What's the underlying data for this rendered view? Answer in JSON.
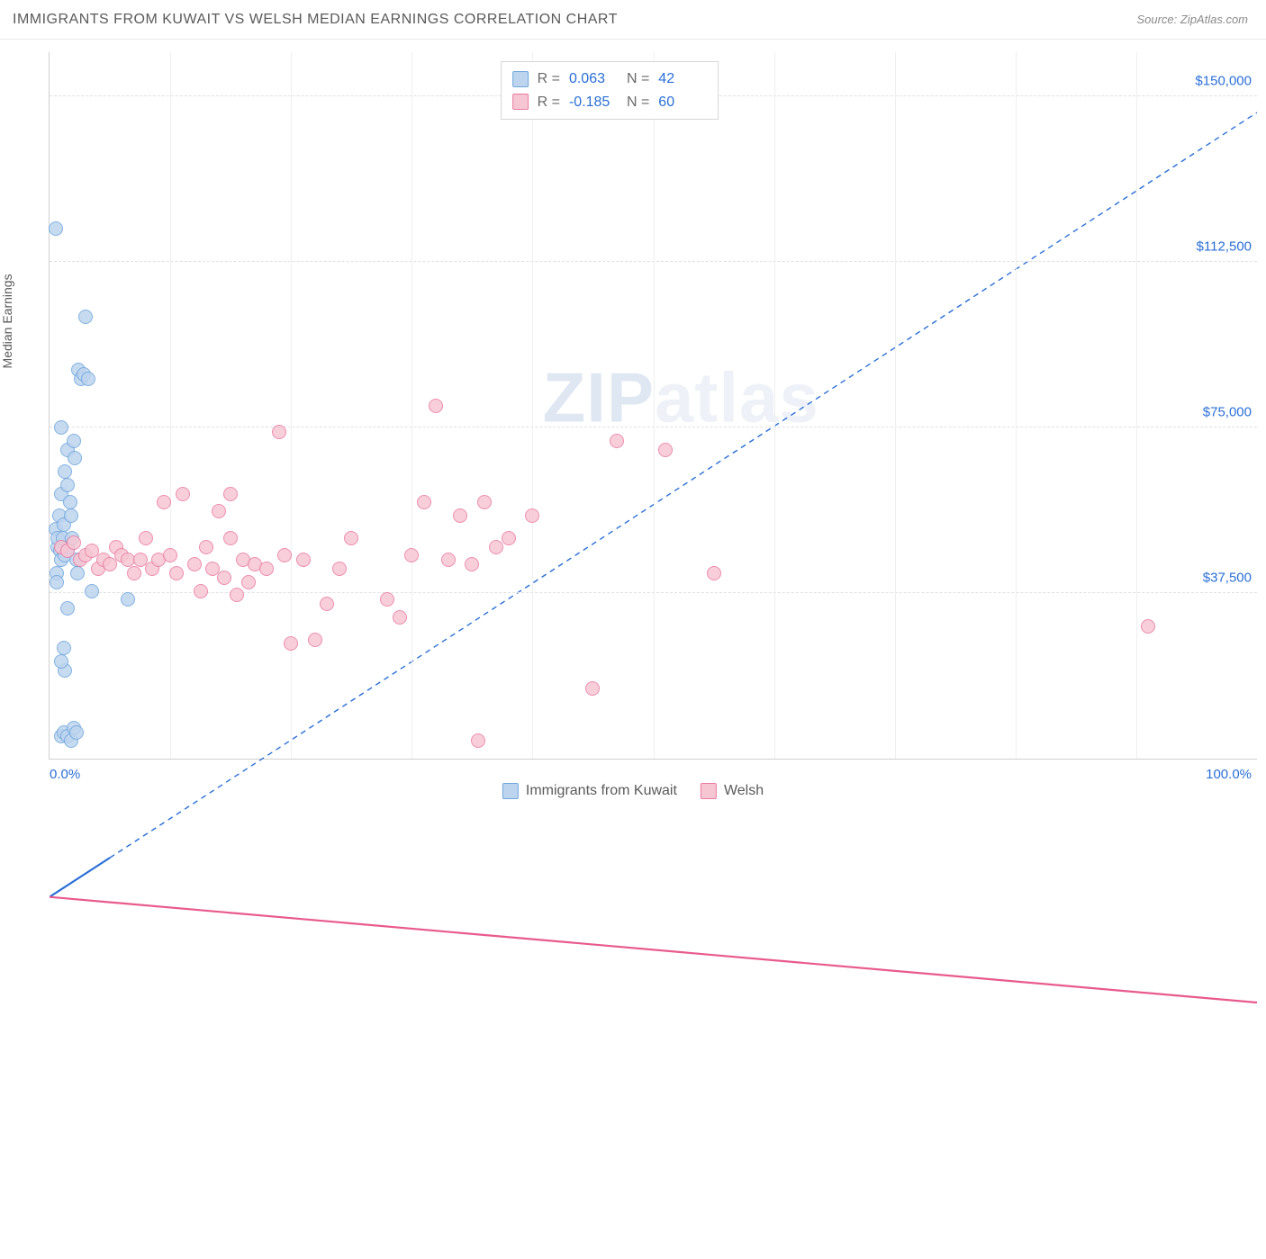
{
  "header": {
    "title": "IMMIGRANTS FROM KUWAIT VS WELSH MEDIAN EARNINGS CORRELATION CHART",
    "source": "Source: ZipAtlas.com"
  },
  "ylabel": "Median Earnings",
  "watermark_a": "ZIP",
  "watermark_b": "atlas",
  "chart": {
    "type": "scatter",
    "xlim": [
      0,
      100
    ],
    "ylim": [
      0,
      160000
    ],
    "x_tick_left": "0.0%",
    "x_tick_right": "100.0%",
    "y_ticks": [
      {
        "v": 37500,
        "label": "$37,500"
      },
      {
        "v": 75000,
        "label": "$75,000"
      },
      {
        "v": 112500,
        "label": "$112,500"
      },
      {
        "v": 150000,
        "label": "$150,000"
      }
    ],
    "x_gridcount": 9,
    "grid_color": "#e0e0e0",
    "background_color": "#ffffff",
    "axis_color": "#d0d0d0",
    "series": [
      {
        "name": "Immigrants from Kuwait",
        "fill": "#bdd4ee",
        "stroke": "#6ea6de",
        "r": 0.063,
        "n": 42,
        "trend": {
          "x1": 0,
          "y1": 48000,
          "x2": 100,
          "y2": 152000,
          "solid_until_x": 5,
          "color": "#2a6fd6"
        },
        "points": [
          [
            0.5,
            52000
          ],
          [
            0.7,
            48000
          ],
          [
            0.7,
            50000
          ],
          [
            0.8,
            55000
          ],
          [
            0.9,
            47000
          ],
          [
            1.0,
            45000
          ],
          [
            1.0,
            60000
          ],
          [
            1.1,
            50000
          ],
          [
            1.2,
            53000
          ],
          [
            1.3,
            46000
          ],
          [
            1.3,
            65000
          ],
          [
            1.5,
            62000
          ],
          [
            1.5,
            70000
          ],
          [
            1.6,
            48000
          ],
          [
            1.7,
            58000
          ],
          [
            1.8,
            55000
          ],
          [
            1.9,
            50000
          ],
          [
            2.0,
            72000
          ],
          [
            2.1,
            68000
          ],
          [
            2.2,
            45000
          ],
          [
            2.3,
            42000
          ],
          [
            2.4,
            88000
          ],
          [
            2.6,
            86000
          ],
          [
            2.8,
            87000
          ],
          [
            3.0,
            100000
          ],
          [
            3.2,
            86000
          ],
          [
            3.5,
            38000
          ],
          [
            0.6,
            42000
          ],
          [
            0.6,
            40000
          ],
          [
            1.0,
            75000
          ],
          [
            1.2,
            25000
          ],
          [
            1.3,
            20000
          ],
          [
            1.0,
            22000
          ],
          [
            1.0,
            5000
          ],
          [
            1.2,
            6000
          ],
          [
            1.5,
            5000
          ],
          [
            1.8,
            4000
          ],
          [
            2.0,
            7000
          ],
          [
            2.2,
            6000
          ],
          [
            0.5,
            120000
          ],
          [
            1.5,
            34000
          ],
          [
            6.5,
            36000
          ]
        ]
      },
      {
        "name": "Welsh",
        "fill": "#f6c6d3",
        "stroke": "#ea7ba0",
        "r": -0.185,
        "n": 60,
        "trend": {
          "x1": 0,
          "y1": 48000,
          "x2": 100,
          "y2": 34000,
          "solid_until_x": 100,
          "color": "#e85a8c"
        },
        "points": [
          [
            1.0,
            48000
          ],
          [
            1.5,
            47000
          ],
          [
            2.0,
            49000
          ],
          [
            2.5,
            45000
          ],
          [
            3.0,
            46000
          ],
          [
            3.5,
            47000
          ],
          [
            4.0,
            43000
          ],
          [
            4.5,
            45000
          ],
          [
            5.0,
            44000
          ],
          [
            5.5,
            48000
          ],
          [
            6.0,
            46000
          ],
          [
            6.5,
            45000
          ],
          [
            7.0,
            42000
          ],
          [
            7.5,
            45000
          ],
          [
            8.0,
            50000
          ],
          [
            8.5,
            43000
          ],
          [
            9.0,
            45000
          ],
          [
            9.5,
            58000
          ],
          [
            10.0,
            46000
          ],
          [
            10.5,
            42000
          ],
          [
            11.0,
            60000
          ],
          [
            12.0,
            44000
          ],
          [
            12.5,
            38000
          ],
          [
            13.0,
            48000
          ],
          [
            13.5,
            43000
          ],
          [
            14.0,
            56000
          ],
          [
            14.5,
            41000
          ],
          [
            15.0,
            50000
          ],
          [
            15.5,
            37000
          ],
          [
            16.0,
            45000
          ],
          [
            16.5,
            40000
          ],
          [
            17.0,
            44000
          ],
          [
            18.0,
            43000
          ],
          [
            19.0,
            74000
          ],
          [
            19.5,
            46000
          ],
          [
            20.0,
            26000
          ],
          [
            21.0,
            45000
          ],
          [
            22.0,
            27000
          ],
          [
            23.0,
            35000
          ],
          [
            24.0,
            43000
          ],
          [
            25.0,
            50000
          ],
          [
            28.0,
            36000
          ],
          [
            29.0,
            32000
          ],
          [
            30.0,
            46000
          ],
          [
            31.0,
            58000
          ],
          [
            32.0,
            80000
          ],
          [
            33.0,
            45000
          ],
          [
            34.0,
            55000
          ],
          [
            35.0,
            44000
          ],
          [
            36.0,
            58000
          ],
          [
            35.5,
            4000
          ],
          [
            37.0,
            48000
          ],
          [
            38.0,
            50000
          ],
          [
            40.0,
            55000
          ],
          [
            45.0,
            16000
          ],
          [
            47.0,
            72000
          ],
          [
            51.0,
            70000
          ],
          [
            55.0,
            42000
          ],
          [
            91.0,
            30000
          ],
          [
            15.0,
            60000
          ]
        ]
      }
    ]
  },
  "stats_labels": {
    "r": "R",
    "eq": "=",
    "n": "N"
  }
}
